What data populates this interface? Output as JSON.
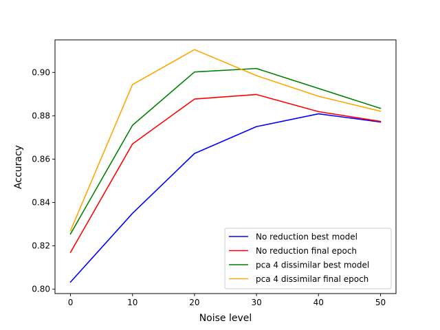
{
  "chart_data": {
    "type": "line",
    "title": "",
    "xlabel": "Noise level",
    "ylabel": "Accuracy",
    "x": [
      0,
      10,
      20,
      30,
      40,
      50
    ],
    "xlim": [
      -2.5,
      52.5
    ],
    "ylim": [
      0.798,
      0.915
    ],
    "xticks": [
      0,
      10,
      20,
      30,
      40,
      50
    ],
    "yticks": [
      0.8,
      0.82,
      0.84,
      0.86,
      0.88,
      0.9
    ],
    "ytick_labels": [
      "0.80",
      "0.82",
      "0.84",
      "0.86",
      "0.88",
      "0.90"
    ],
    "grid": false,
    "legend_position": "lower-right",
    "series": [
      {
        "name": "No reduction best model",
        "color": "#0000ff",
        "values": [
          0.8033,
          0.835,
          0.8626,
          0.875,
          0.8809,
          0.8771
        ]
      },
      {
        "name": "No reduction final epoch",
        "color": "#ff0000",
        "values": [
          0.817,
          0.867,
          0.8877,
          0.8898,
          0.8819,
          0.8774
        ]
      },
      {
        "name": "pca 4 dissimilar best model",
        "color": "#008000",
        "values": [
          0.8255,
          0.8756,
          0.9002,
          0.9018,
          0.8926,
          0.8834
        ]
      },
      {
        "name": "pca 4 dissimilar final epoch",
        "color": "#ffa500",
        "values": [
          0.827,
          0.8944,
          0.9105,
          0.8985,
          0.889,
          0.8821
        ]
      }
    ]
  }
}
